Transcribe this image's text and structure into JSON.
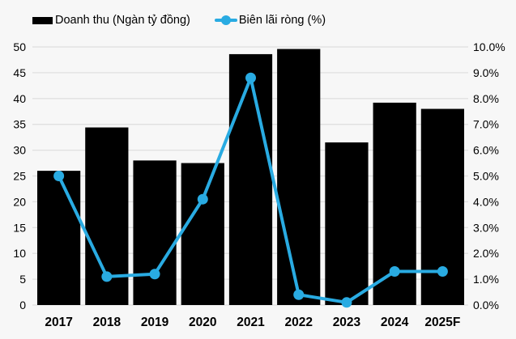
{
  "colors": {
    "background": "#f7f7f7",
    "gridline": "#e0e0e0",
    "bar": "#000000",
    "line": "#29abe2",
    "text": "#000000"
  },
  "legend": {
    "items": [
      {
        "label": "Doanh thu (Ngàn tỷ đồng)",
        "marker": "bar-swatch",
        "color": "#000000"
      },
      {
        "label": "Biên lãi ròng (%)",
        "marker": "line-dot-swatch",
        "color": "#29abe2"
      }
    ]
  },
  "chart_data": {
    "type": "bar",
    "subtype": "combo-bar-line",
    "title": "",
    "categories": [
      "2017",
      "2018",
      "2019",
      "2020",
      "2021",
      "2022",
      "2023",
      "2024",
      "2025F"
    ],
    "series": [
      {
        "name": "Doanh thu (Ngàn tỷ đồng)",
        "type": "bar",
        "axis": "left",
        "color": "#000000",
        "values": [
          26,
          34.4,
          28,
          27.5,
          48.6,
          49.6,
          31.5,
          39.2,
          38
        ]
      },
      {
        "name": "Biên lãi ròng (%)",
        "type": "line",
        "axis": "right",
        "color": "#29abe2",
        "values": [
          5.0,
          1.1,
          1.2,
          4.1,
          8.8,
          0.4,
          0.1,
          1.3,
          1.3
        ]
      }
    ],
    "left_axis": {
      "min": 0,
      "max": 50,
      "step": 5,
      "ticks": [
        "0",
        "5",
        "10",
        "15",
        "20",
        "25",
        "30",
        "35",
        "40",
        "45",
        "50"
      ]
    },
    "right_axis": {
      "min": 0,
      "max": 10,
      "step": 1,
      "ticks": [
        "0.0%",
        "1.0%",
        "2.0%",
        "3.0%",
        "4.0%",
        "5.0%",
        "6.0%",
        "7.0%",
        "8.0%",
        "9.0%",
        "10.0%"
      ]
    },
    "grid": true,
    "legend_position": "top-left"
  }
}
